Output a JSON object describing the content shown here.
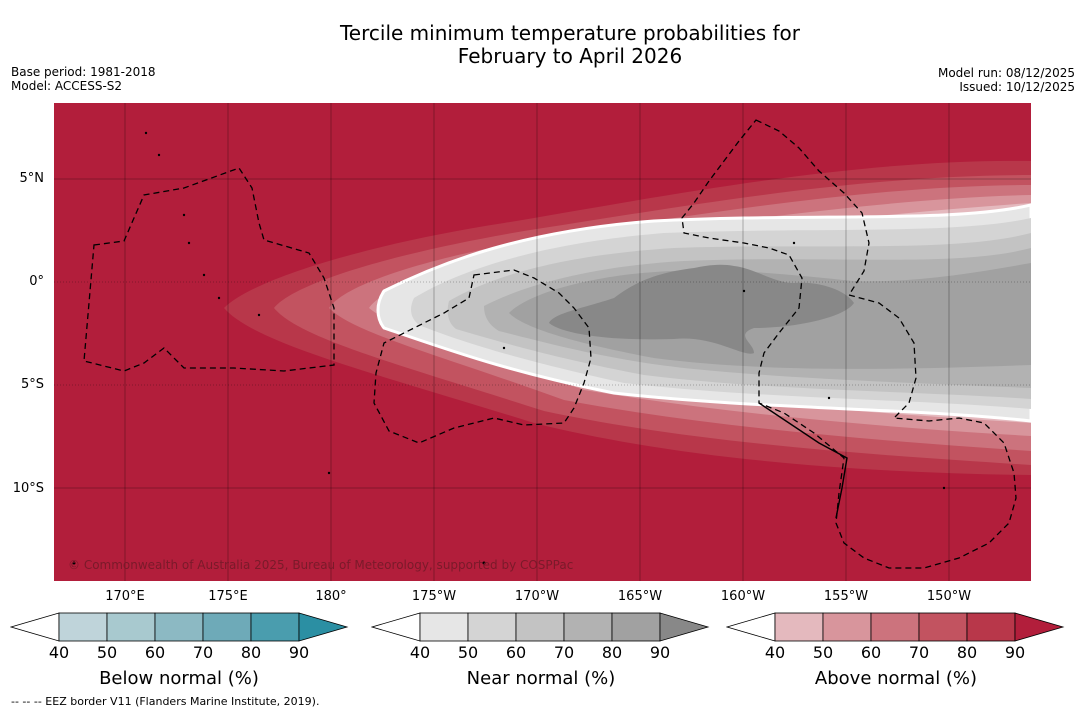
{
  "title": {
    "line1": "Tercile minimum temperature probabilities for",
    "line2": "February to April 2026"
  },
  "meta_left": {
    "base_period": "Base period: 1981-2018",
    "model": "Model: ACCESS-S2"
  },
  "meta_right": {
    "model_run": "Model run: 08/12/2025",
    "issued": "Issued: 10/12/2025"
  },
  "map": {
    "lat_labels": [
      "5°N",
      "0°",
      "5°S",
      "10°S"
    ],
    "lon_labels": [
      "170°E",
      "175°E",
      "180°",
      "175°W",
      "170°W",
      "165°W",
      "160°W",
      "155°W",
      "150°W"
    ],
    "copyright": "© Commonwealth of Australia 2025, Bureau of Meteorology, supported by COSPPac"
  },
  "colorbars": [
    {
      "title": "Below normal (%)",
      "ticks": [
        "40",
        "50",
        "60",
        "70",
        "80",
        "90"
      ],
      "colors": [
        "#bfd4da",
        "#a8c9cf",
        "#8cb9c3",
        "#6eaab8",
        "#4a9dae",
        "#2b8fa3"
      ]
    },
    {
      "title": "Near normal (%)",
      "ticks": [
        "40",
        "50",
        "60",
        "70",
        "80",
        "90"
      ],
      "colors": [
        "#e6e6e6",
        "#d4d4d4",
        "#c3c3c3",
        "#b2b2b2",
        "#a1a1a1",
        "#888888"
      ]
    },
    {
      "title": "Above normal (%)",
      "ticks": [
        "40",
        "50",
        "60",
        "70",
        "80",
        "90"
      ],
      "colors": [
        "#e4b9be",
        "#d8959c",
        "#cc737d",
        "#c25360",
        "#b8374a",
        "#b21e3b"
      ]
    }
  ],
  "footnote": "--  --  -- EEZ border V11 (Flanders Marine Institute, 2019).",
  "palette": {
    "above_90": "#b21e3b",
    "near_90": "#888888",
    "white": "#ffffff"
  }
}
